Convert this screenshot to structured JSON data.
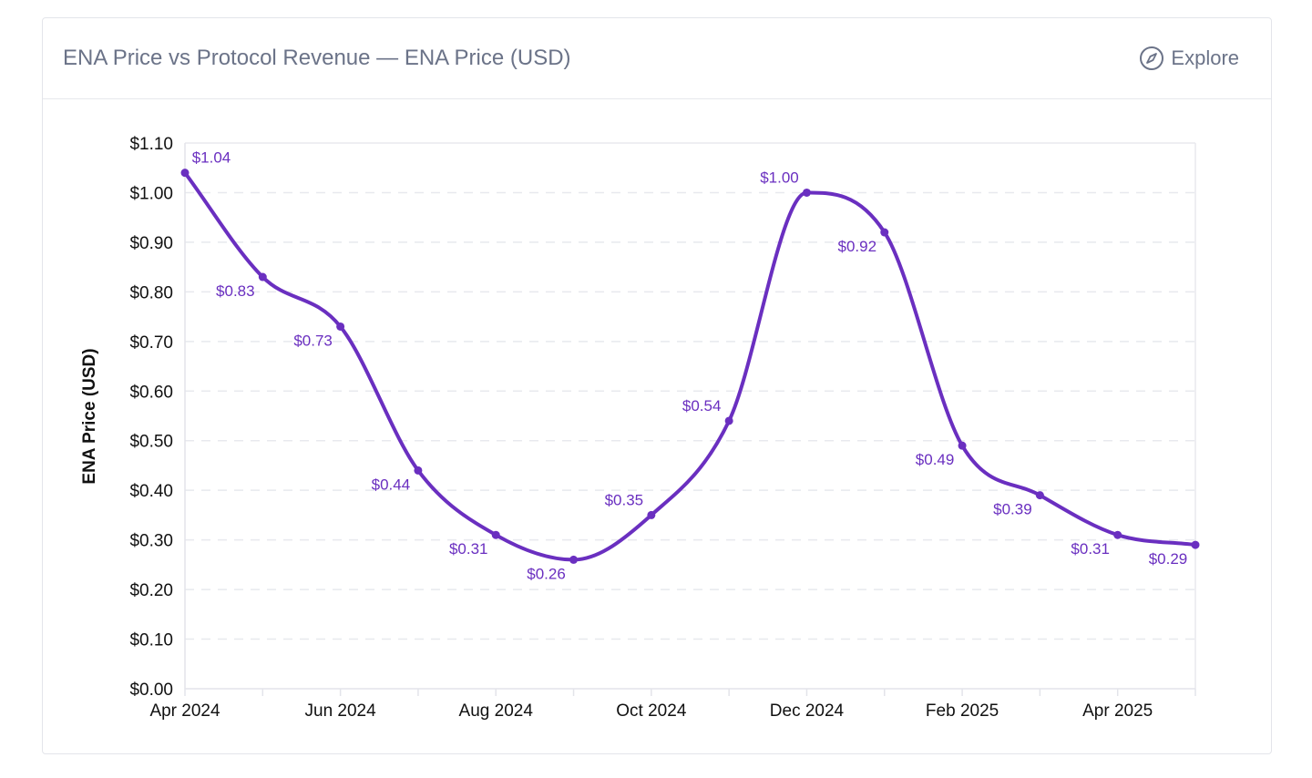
{
  "header": {
    "title": "ENA Price vs Protocol Revenue — ENA Price (USD)",
    "explore_label": "Explore",
    "explore_icon": "compass-icon"
  },
  "chart_data": {
    "type": "line",
    "title": "",
    "xlabel": "",
    "ylabel": "ENA Price (USD)",
    "ylim": [
      0,
      1.1
    ],
    "grid": true,
    "color": "#6a2fc0",
    "x": [
      "2024-04",
      "2024-05",
      "2024-06",
      "2024-07",
      "2024-08",
      "2024-09",
      "2024-10",
      "2024-11",
      "2024-12",
      "2025-01",
      "2025-02",
      "2025-03",
      "2025-04",
      "2025-05"
    ],
    "values": [
      1.04,
      0.83,
      0.73,
      0.44,
      0.31,
      0.26,
      0.35,
      0.54,
      1.0,
      0.92,
      0.49,
      0.39,
      0.31,
      0.29
    ],
    "data_labels": [
      "$1.04",
      "$0.83",
      "$0.73",
      "$0.44",
      "$0.31",
      "$0.26",
      "$0.35",
      "$0.54",
      "$1.00",
      "$0.92",
      "$0.49",
      "$0.39",
      "$0.31",
      "$0.29"
    ],
    "y_ticks": [
      "$0.00",
      "$0.10",
      "$0.20",
      "$0.30",
      "$0.40",
      "$0.50",
      "$0.60",
      "$0.70",
      "$0.80",
      "$0.90",
      "$1.00",
      "$1.10"
    ],
    "x_ticks": [
      {
        "index": 0,
        "label": "Apr 2024"
      },
      {
        "index": 2,
        "label": "Jun 2024"
      },
      {
        "index": 4,
        "label": "Aug 2024"
      },
      {
        "index": 6,
        "label": "Oct 2024"
      },
      {
        "index": 8,
        "label": "Dec 2024"
      },
      {
        "index": 10,
        "label": "Feb 2025"
      },
      {
        "index": 12,
        "label": "Apr 2025"
      }
    ]
  }
}
